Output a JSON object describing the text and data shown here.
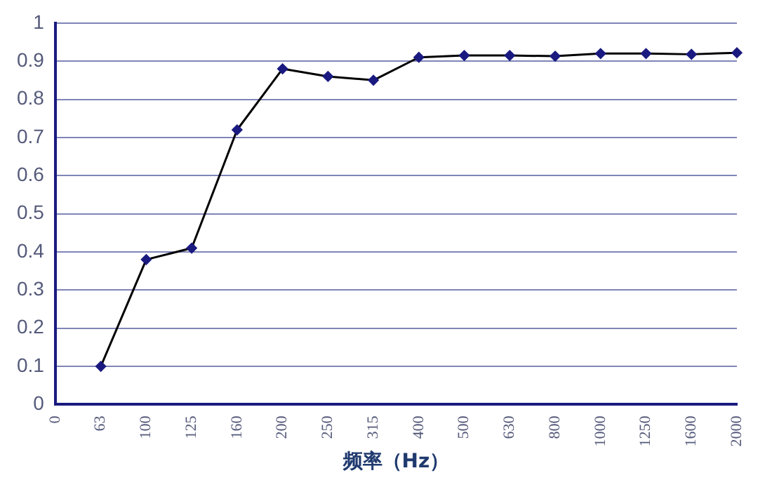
{
  "chart_data": {
    "type": "line",
    "xlabel": "频率（Hz）",
    "categories": [
      "0",
      "63",
      "100",
      "125",
      "160",
      "200",
      "250",
      "315",
      "400",
      "500",
      "630",
      "800",
      "1000",
      "1250",
      "1600",
      "2000"
    ],
    "series": [
      {
        "color": "#000000",
        "values": [
          null,
          0.1,
          0.38,
          0.41,
          0.72,
          0.88,
          0.86,
          0.85,
          0.91,
          0.915,
          0.915,
          0.913,
          0.92,
          0.92,
          0.918,
          0.922
        ]
      }
    ],
    "ylim": [
      0,
      1
    ],
    "yticks": [
      0,
      0.1,
      0.2,
      0.3,
      0.4,
      0.5,
      0.6,
      0.7,
      0.8,
      0.9,
      1
    ],
    "grid": "y",
    "legend": false,
    "marker": "diamond",
    "line_style": "solid"
  }
}
